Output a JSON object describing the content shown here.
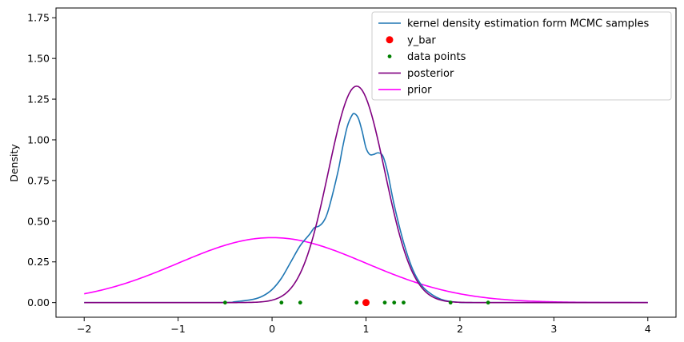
{
  "chart_data": {
    "type": "line",
    "title": "",
    "xlabel": "",
    "ylabel": "Density",
    "xlim": [
      -2.3,
      4.3
    ],
    "ylim": [
      -0.09,
      1.81
    ],
    "x_ticks": [
      -2,
      -1,
      0,
      1,
      2,
      3,
      4
    ],
    "x_tick_labels": [
      "−2",
      "−1",
      "0",
      "1",
      "2",
      "3",
      "4"
    ],
    "y_ticks": [
      0.0,
      0.25,
      0.5,
      0.75,
      1.0,
      1.25,
      1.5,
      1.75
    ],
    "y_tick_labels": [
      "0.00",
      "0.25",
      "0.50",
      "0.75",
      "1.00",
      "1.25",
      "1.50",
      "1.75"
    ],
    "grid": false,
    "legend_position": "top-right",
    "series": [
      {
        "name": "kernel density estimation form MCMC samples",
        "color": "#1f77b4",
        "marker": "line",
        "x": [
          -2.0,
          -0.6,
          -0.4,
          -0.2,
          -0.1,
          0.0,
          0.1,
          0.2,
          0.3,
          0.4,
          0.45,
          0.5,
          0.55,
          0.6,
          0.7,
          0.75,
          0.8,
          0.85,
          0.88,
          0.92,
          0.96,
          1.0,
          1.04,
          1.08,
          1.13,
          1.18,
          1.23,
          1.3,
          1.4,
          1.5,
          1.6,
          1.7,
          1.8,
          1.9,
          2.0,
          2.2,
          4.0
        ],
        "y": [
          0.0,
          0.0,
          0.005,
          0.02,
          0.04,
          0.08,
          0.15,
          0.25,
          0.35,
          0.42,
          0.46,
          0.47,
          0.5,
          0.57,
          0.8,
          0.95,
          1.08,
          1.15,
          1.16,
          1.13,
          1.05,
          0.95,
          0.91,
          0.91,
          0.92,
          0.9,
          0.8,
          0.6,
          0.37,
          0.2,
          0.1,
          0.05,
          0.02,
          0.007,
          0.002,
          0.0,
          0.0
        ]
      },
      {
        "name": "y_bar",
        "color": "#ff0000",
        "marker": "dot",
        "x": [
          1.0
        ],
        "y": [
          0.0
        ]
      },
      {
        "name": "data points",
        "color": "#008000",
        "marker": "small-dot",
        "x": [
          -0.5,
          0.1,
          0.3,
          0.9,
          1.0,
          1.2,
          1.3,
          1.4,
          1.9,
          2.3
        ],
        "y": [
          0,
          0,
          0,
          0,
          0,
          0,
          0,
          0,
          0,
          0
        ]
      },
      {
        "name": "posterior",
        "color": "#800080",
        "marker": "line",
        "mean": 0.9,
        "sd": 0.3,
        "x_range": [
          -2,
          4
        ],
        "peak": 1.33
      },
      {
        "name": "prior",
        "color": "#ff00ff",
        "marker": "line",
        "mean": 0.0,
        "sd": 1.0,
        "x_range": [
          -2,
          4
        ],
        "peak": 0.399
      }
    ]
  }
}
